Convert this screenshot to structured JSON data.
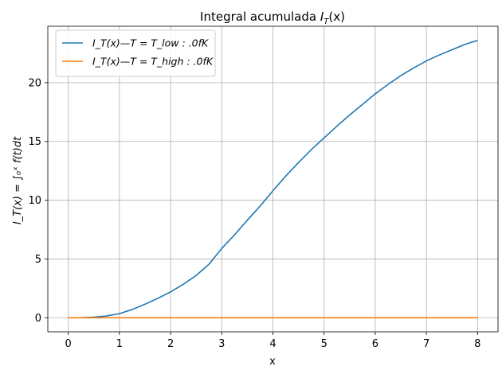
{
  "chart_data": {
    "type": "line",
    "title": "Integral acumulada I_T(x)",
    "xlabel": "x",
    "ylabel": "I_T(x) = ∫₀ˣ f(t)dt",
    "xlim": [
      -0.4,
      8.4
    ],
    "ylim": [
      -1.2,
      24.8
    ],
    "xticks": [
      0,
      1,
      2,
      3,
      4,
      5,
      6,
      7,
      8
    ],
    "yticks": [
      0,
      5,
      10,
      15,
      20
    ],
    "grid": true,
    "legend_position": "top-left",
    "series": [
      {
        "name": "I_T(x)—T = T_low : .0fK",
        "color": "#1f77b4",
        "x": [
          0,
          0.25,
          0.5,
          0.75,
          1,
          1.25,
          1.5,
          1.75,
          2,
          2.25,
          2.5,
          2.75,
          3,
          3.25,
          3.5,
          3.75,
          4,
          4.25,
          4.5,
          4.75,
          5,
          5.25,
          5.5,
          5.75,
          6,
          6.25,
          6.5,
          6.75,
          7,
          7.25,
          7.5,
          7.75,
          8
        ],
        "y": [
          0,
          0.01,
          0.05,
          0.15,
          0.35,
          0.7,
          1.15,
          1.65,
          2.2,
          2.85,
          3.6,
          4.55,
          5.9,
          7.05,
          8.3,
          9.5,
          10.8,
          12.05,
          13.2,
          14.3,
          15.3,
          16.3,
          17.25,
          18.15,
          19.05,
          19.85,
          20.6,
          21.25,
          21.85,
          22.35,
          22.8,
          23.25,
          23.6
        ]
      },
      {
        "name": "I_T(x)—T = T_high : .0fK",
        "color": "#ff7f0e",
        "x": [
          0,
          8
        ],
        "y": [
          0,
          0
        ]
      }
    ]
  }
}
